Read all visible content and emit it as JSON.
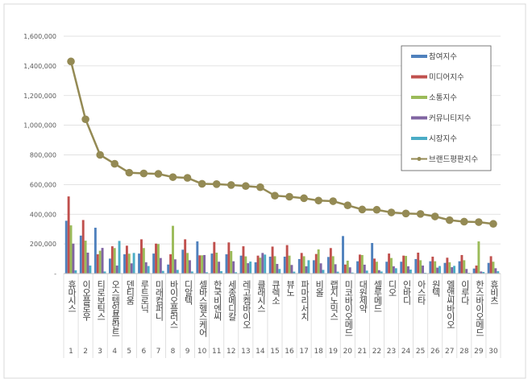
{
  "chart_data": {
    "type": "bar",
    "title": "",
    "xlabel": "",
    "ylabel": "",
    "ylim": [
      0,
      1600000
    ],
    "yticks": [
      "-",
      "200,000",
      "400,000",
      "600,000",
      "800,000",
      "1,000,000",
      "1,200,000",
      "1,400,000",
      "1,600,000"
    ],
    "grid": true,
    "legend_position": "top-right",
    "categories": [
      "휴마시스",
      "이오플로우",
      "티로보틱스",
      "오스템임플란트",
      "덴티움",
      "루트로닉",
      "미래컴퍼니",
      "바이오플러스",
      "디알텍",
      "셀바스헬스케어",
      "한국비엔씨",
      "세종메디칼",
      "레고켐바이오",
      "클래시스",
      "큐렉소",
      "뷰노",
      "파마리서치",
      "비올",
      "랩지노믹스",
      "미코바이오메드",
      "대원제약",
      "셀루메드",
      "디오",
      "인바디",
      "아스타",
      "원텍",
      "엘앤씨바이오",
      "이루다",
      "한스바이오메드",
      "휴비츠"
    ],
    "ranks": [
      "1",
      "2",
      "3",
      "4",
      "5",
      "6",
      "7",
      "8",
      "9",
      "10",
      "11",
      "12",
      "13",
      "14",
      "15",
      "16",
      "17",
      "18",
      "19",
      "20",
      "21",
      "22",
      "23",
      "24",
      "25",
      "26",
      "27",
      "28",
      "29",
      "30"
    ],
    "series": [
      {
        "name": "참여지수",
        "type": "bar",
        "color": "#4f81bd",
        "values": [
          356000,
          256000,
          309000,
          101000,
          130000,
          135000,
          135000,
          61000,
          161000,
          217000,
          135000,
          130000,
          121000,
          76000,
          114000,
          114000,
          98000,
          90000,
          112000,
          253000,
          83000,
          206000,
          80000,
          80000,
          98000,
          83000,
          72000,
          83000,
          34000,
          72000
        ]
      },
      {
        "name": "미디어지수",
        "type": "bar",
        "color": "#c0504d",
        "values": [
          520000,
          361000,
          130000,
          184000,
          188000,
          231000,
          202000,
          130000,
          231000,
          123000,
          213000,
          210000,
          184000,
          121000,
          182000,
          192000,
          139000,
          132000,
          172000,
          61000,
          128000,
          101000,
          135000,
          121000,
          141000,
          114000,
          107000,
          125000,
          54000,
          117000
        ]
      },
      {
        "name": "소통지수",
        "type": "bar",
        "color": "#9bbb59",
        "values": [
          325000,
          222000,
          154000,
          172000,
          134000,
          172000,
          199000,
          322000,
          139000,
          123000,
          141000,
          152000,
          116000,
          107000,
          117000,
          121000,
          117000,
          163000,
          117000,
          87000,
          125000,
          80000,
          105000,
          119000,
          90000,
          83000,
          76000,
          90000,
          217000,
          80000
        ]
      },
      {
        "name": "커뮤니티지수",
        "type": "bar",
        "color": "#8064a2",
        "values": [
          202000,
          141000,
          173000,
          54000,
          69000,
          76000,
          105000,
          96000,
          90000,
          125000,
          80000,
          83000,
          70000,
          139000,
          65000,
          58000,
          49000,
          69000,
          63000,
          42000,
          60000,
          23000,
          49000,
          49000,
          54000,
          40000,
          43000,
          31000,
          14000,
          36000
        ]
      },
      {
        "name": "시장지수",
        "type": "bar",
        "color": "#4bacc6",
        "values": [
          22000,
          54000,
          14000,
          220000,
          139000,
          51000,
          18000,
          25000,
          14000,
          9000,
          16000,
          9000,
          81000,
          128000,
          31000,
          13000,
          90000,
          25000,
          13000,
          7000,
          20000,
          14000,
          36000,
          27000,
          5000,
          51000,
          52000,
          5000,
          11000,
          16000
        ]
      },
      {
        "name": "브랜드평판지수",
        "type": "line",
        "color": "#948a54",
        "values": [
          1430000,
          1040000,
          800000,
          740000,
          680000,
          675000,
          672000,
          650000,
          645000,
          605000,
          603000,
          597000,
          590000,
          582000,
          525000,
          518000,
          508000,
          492000,
          488000,
          460000,
          432000,
          430000,
          412000,
          405000,
          402000,
          385000,
          360000,
          350000,
          347000,
          335000
        ]
      }
    ]
  }
}
